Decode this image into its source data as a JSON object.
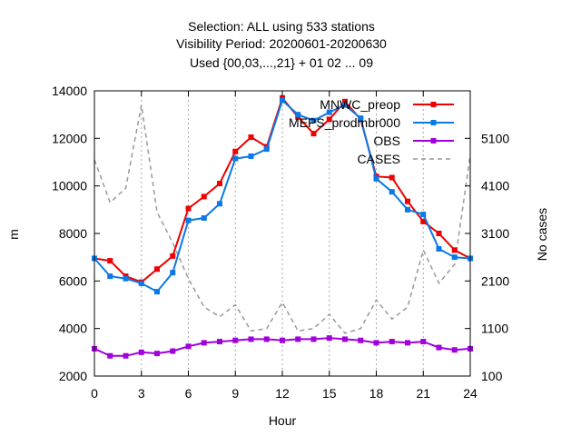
{
  "chart_data": {
    "type": "line",
    "title_lines": [
      "Selection: ALL using   533 stations",
      "Visibility   Period: 20200601-20200630",
      "Used {00,03,...,21} + 01 02 ... 09"
    ],
    "xlabel": "Hour",
    "ylabel": "m",
    "y2label": "No cases",
    "xlim": [
      0,
      24
    ],
    "ylim": [
      2000,
      14000
    ],
    "y2lim": [
      100,
      6100
    ],
    "x_ticks": [
      "0",
      "3",
      "6",
      "9",
      "12",
      "15",
      "18",
      "21",
      "24"
    ],
    "y_ticks": [
      "2000",
      "4000",
      "6000",
      "8000",
      "10000",
      "12000",
      "14000"
    ],
    "y2_ticks": [
      "100",
      "1100",
      "2100",
      "3100",
      "4100",
      "5100"
    ],
    "grid": "vertical dotted at x ticks",
    "legend_position": "top-right",
    "x": [
      0,
      1,
      2,
      3,
      4,
      5,
      6,
      7,
      8,
      9,
      10,
      11,
      12,
      13,
      14,
      15,
      16,
      17,
      18,
      19,
      20,
      21,
      22,
      23,
      24
    ],
    "series": [
      {
        "name": "MNWC_preop",
        "color": "#ee0000",
        "marker": "square",
        "axis": "y",
        "values": [
          6950,
          6850,
          6200,
          5950,
          6500,
          7050,
          9050,
          9550,
          10100,
          11450,
          12050,
          11650,
          13700,
          12900,
          12200,
          12800,
          13550,
          12800,
          10400,
          10350,
          9350,
          8500,
          8000,
          7300,
          6950
        ]
      },
      {
        "name": "MEPS_prodmbr000",
        "color": "#0a78e6",
        "marker": "square",
        "axis": "y",
        "values": [
          6950,
          6200,
          6100,
          5900,
          5550,
          6350,
          8550,
          8650,
          9250,
          11150,
          11250,
          11550,
          13600,
          13000,
          12750,
          13100,
          13400,
          12850,
          10300,
          9750,
          9000,
          8800,
          7350,
          7000,
          6950
        ]
      },
      {
        "name": "OBS",
        "color": "#a000dc",
        "marker": "square",
        "axis": "y",
        "values": [
          3150,
          2850,
          2850,
          3000,
          2950,
          3050,
          3250,
          3400,
          3450,
          3500,
          3550,
          3550,
          3500,
          3550,
          3550,
          3600,
          3550,
          3500,
          3400,
          3450,
          3400,
          3450,
          3200,
          3100,
          3150
        ]
      },
      {
        "name": "CASES",
        "color": "#999999",
        "marker": "none",
        "dash": "dashed",
        "axis": "y2",
        "values": [
          4650,
          3750,
          4050,
          5800,
          3550,
          2900,
          2150,
          1550,
          1350,
          1600,
          1050,
          1100,
          1650,
          1050,
          1100,
          1400,
          1000,
          1100,
          1700,
          1300,
          1550,
          2750,
          2050,
          2450,
          4750
        ]
      }
    ]
  }
}
